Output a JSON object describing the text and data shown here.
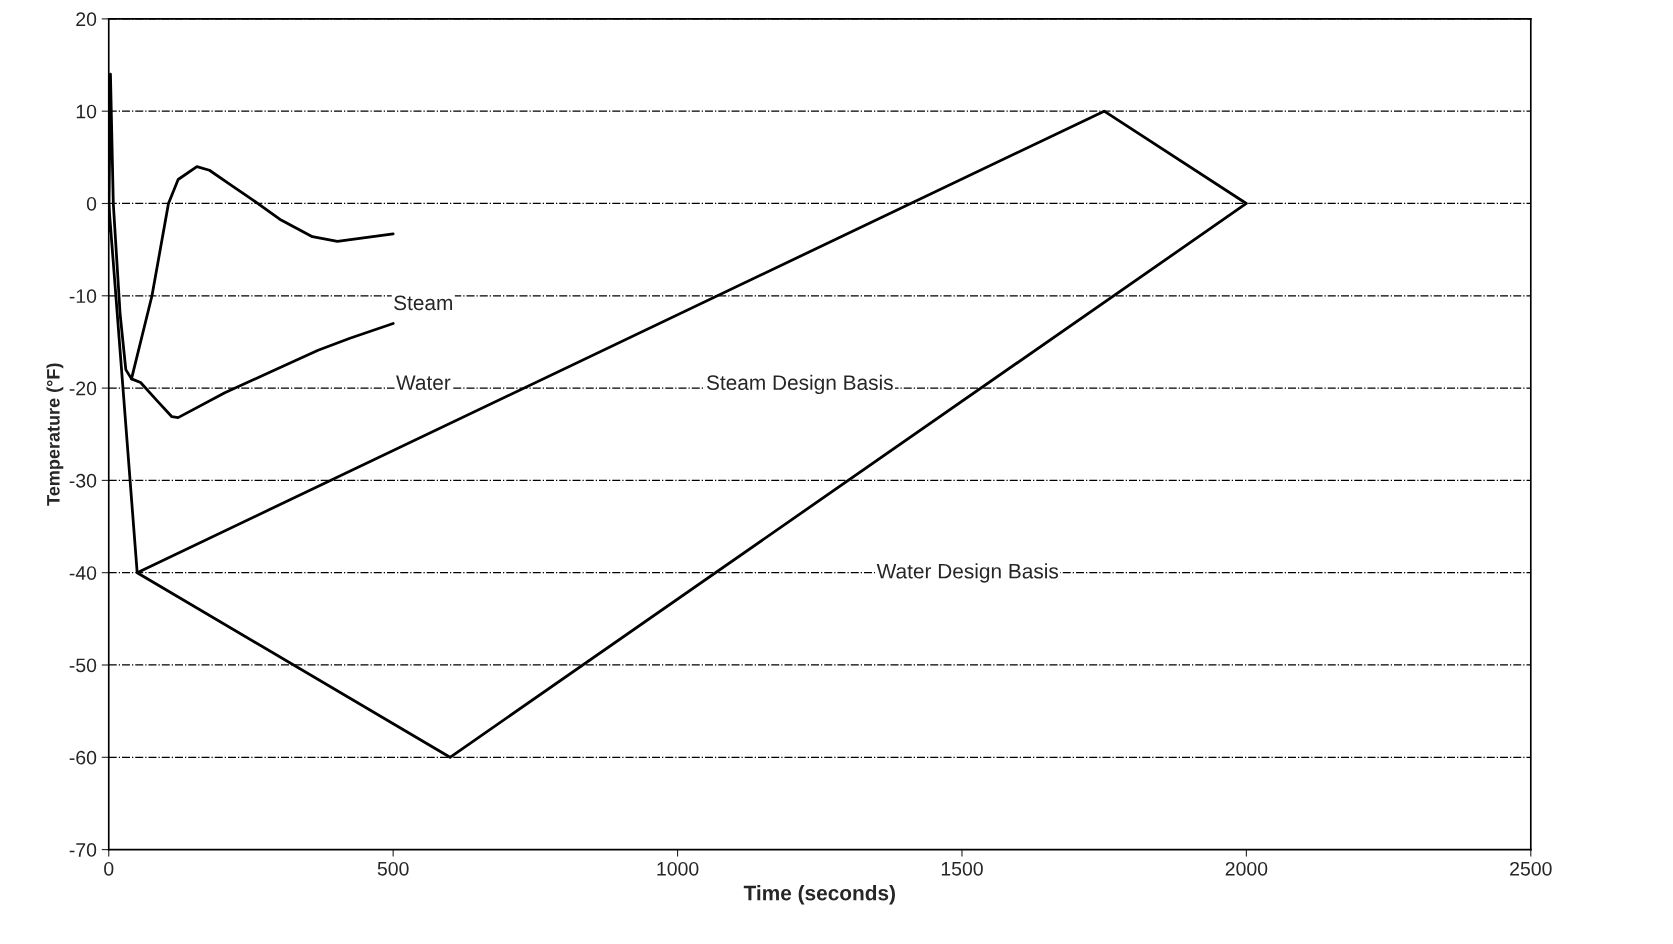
{
  "chart_data": {
    "type": "line",
    "xlabel": "Time (seconds)",
    "ylabel": "Temperature (°F)",
    "xlim": [
      0,
      2500
    ],
    "xticks": [
      0,
      500,
      1000,
      1500,
      2000,
      2500
    ],
    "ylim": [
      -70,
      20
    ],
    "yticks": [
      -70,
      -60,
      -50,
      -40,
      -30,
      -20,
      -10,
      0,
      10,
      20
    ],
    "grid": "y",
    "legend": false,
    "marker": "none",
    "series": [
      {
        "color": "#000000",
        "line_style": "solid",
        "x": [
          0,
          3,
          8,
          20,
          30,
          40,
          76,
          105,
          122,
          155,
          177,
          215,
          253,
          303,
          358,
          402,
          451,
          500
        ],
        "values": [
          -3,
          14,
          0,
          -12,
          -18,
          -19,
          -10,
          0,
          2.6,
          4,
          3.6,
          2,
          0.4,
          -1.8,
          -3.6,
          -4.1,
          -3.7,
          -3.3
        ]
      },
      {
        "color": "#000000",
        "line_style": "solid",
        "x": [
          40,
          56,
          84,
          111,
          122,
          204,
          286,
          368,
          424,
          500
        ],
        "values": [
          -19,
          -19.4,
          -21.3,
          -23.1,
          -23.2,
          -20.5,
          -18.2,
          -15.9,
          -14.6,
          -13
        ]
      },
      {
        "color": "#000000",
        "line_style": "solid",
        "x": [
          0,
          50,
          1750,
          2000,
          600,
          50
        ],
        "values": [
          0,
          -40,
          10,
          0,
          -60,
          -40
        ]
      }
    ],
    "annotations": [
      "Steam",
      "Water",
      "Steam Design Basis",
      "Water Design Basis"
    ]
  }
}
